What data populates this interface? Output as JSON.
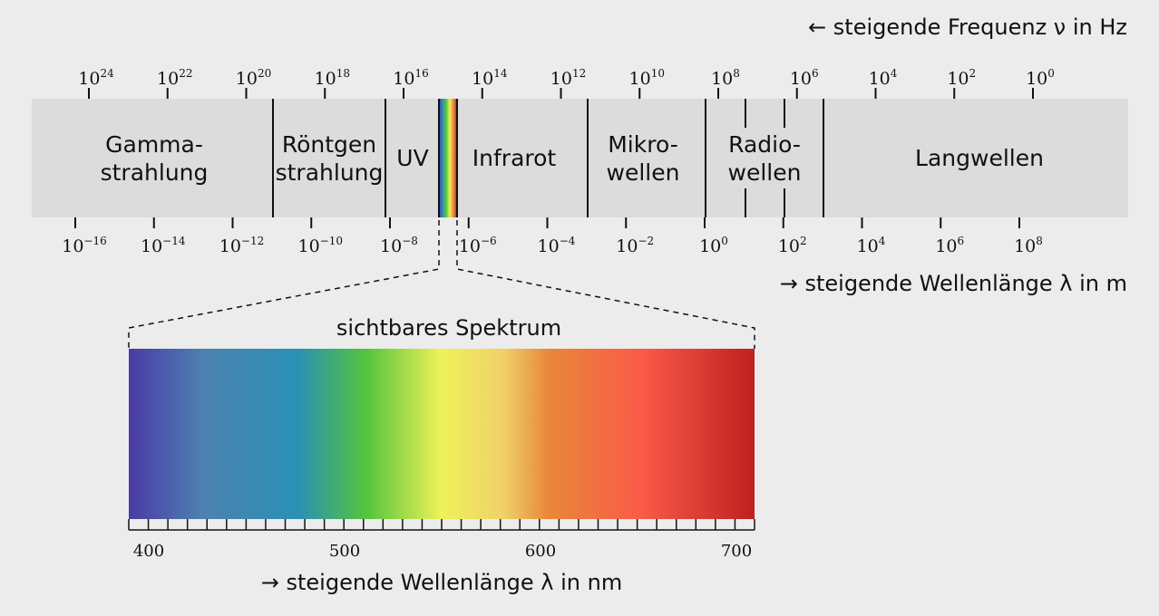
{
  "frequency_axis": {
    "title": "← steigende Frequenz ν in Hz",
    "base": "10",
    "exponents": [
      "24",
      "22",
      "20",
      "18",
      "16",
      "14",
      "12",
      "10",
      "8",
      "6",
      "4",
      "2",
      "0"
    ]
  },
  "wavelength_axis": {
    "title": "→ steigende Wellenlänge λ in m",
    "base": "10",
    "exponents": [
      "−16",
      "−14",
      "−12",
      "−10",
      "−8",
      "−6",
      "−4",
      "−2",
      "0",
      "2",
      "4",
      "6",
      "8"
    ]
  },
  "regions": [
    {
      "line1": "Gamma-",
      "line2": "strahlung"
    },
    {
      "line1": "Röntgen",
      "line2": "strahlung"
    },
    {
      "line1": "UV",
      "line2": ""
    },
    {
      "line1": "Infrarot",
      "line2": ""
    },
    {
      "line1": "Mikro-",
      "line2": "wellen"
    },
    {
      "line1": "Radio-",
      "line2": "wellen"
    },
    {
      "line1": "Langwellen",
      "line2": ""
    }
  ],
  "visible": {
    "title": "sichtbares Spektrum",
    "labels": [
      "400",
      "500",
      "600",
      "700"
    ],
    "axis_title": "→ steigende Wellenlänge λ in nm"
  },
  "colors": {
    "background": "#ececec",
    "band": "#dcdcdc",
    "spectrum_stops": [
      "#4b3aa6",
      "#4d82b0",
      "#2a90b5",
      "#55c43c",
      "#eef25a",
      "#f0d068",
      "#e8883a",
      "#fa5a48",
      "#be2020"
    ]
  }
}
